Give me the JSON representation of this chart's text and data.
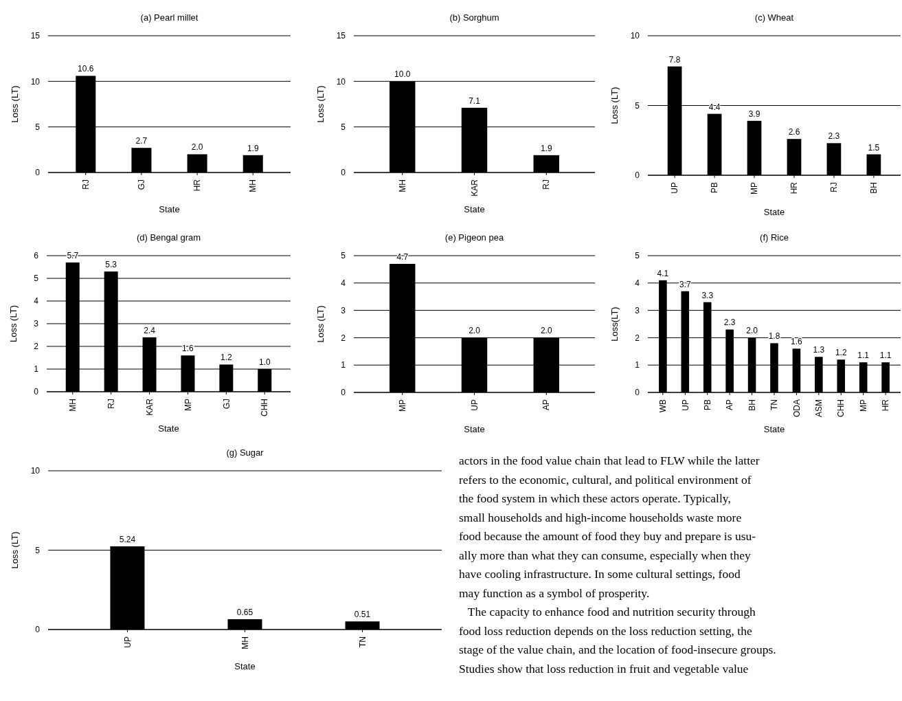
{
  "chart_data": [
    {
      "type": "bar",
      "title": "(a) Pearl millet",
      "xlabel": "State",
      "ylabel": "Loss (LT)",
      "categories": [
        "RJ",
        "GJ",
        "HR",
        "MH"
      ],
      "values": [
        10.6,
        2.7,
        2.0,
        1.9
      ],
      "value_labels": [
        "10.6",
        "2.7",
        "2.0",
        "1.9"
      ],
      "color": "#000000",
      "ylim": [
        0,
        15
      ],
      "yticks": [
        0,
        5,
        10,
        15
      ],
      "grid": "y"
    },
    {
      "type": "bar",
      "title": "(b) Sorghum",
      "xlabel": "State",
      "ylabel": "Loss (LT)",
      "categories": [
        "MH",
        "KAR",
        "RJ"
      ],
      "values": [
        10.0,
        7.1,
        1.9
      ],
      "value_labels": [
        "10.0",
        "7.1",
        "1.9"
      ],
      "color": "#000000",
      "ylim": [
        0,
        15
      ],
      "yticks": [
        0,
        5,
        10,
        15
      ],
      "grid": "y"
    },
    {
      "type": "bar",
      "title": "(c) Wheat",
      "xlabel": "State",
      "ylabel": "Loss (LT)",
      "categories": [
        "UP",
        "PB",
        "MP",
        "HR",
        "RJ",
        "BH"
      ],
      "values": [
        7.8,
        4.4,
        3.9,
        2.6,
        2.3,
        1.5
      ],
      "value_labels": [
        "7.8",
        "4.4",
        "3.9",
        "2.6",
        "2.3",
        "1.5"
      ],
      "color": "#000000",
      "ylim": [
        0,
        10
      ],
      "yticks": [
        0,
        5,
        10
      ],
      "grid": "y"
    },
    {
      "type": "bar",
      "title": "(d) Bengal gram",
      "xlabel": "State",
      "ylabel": "Loss (LT)",
      "categories": [
        "MH",
        "RJ",
        "KAR",
        "MP",
        "GJ",
        "CHH"
      ],
      "values": [
        5.7,
        5.3,
        2.4,
        1.6,
        1.2,
        1.0
      ],
      "value_labels": [
        "5.7",
        "5.3",
        "2.4",
        "1.6",
        "1.2",
        "1.0"
      ],
      "color": "#000000",
      "ylim": [
        0,
        6
      ],
      "yticks": [
        0,
        1,
        2,
        3,
        4,
        5,
        6
      ],
      "grid": "y"
    },
    {
      "type": "bar",
      "title": "(e) Pigeon pea",
      "xlabel": "State",
      "ylabel": "Loss (LT)",
      "categories": [
        "MP",
        "UP",
        "AP"
      ],
      "values": [
        4.7,
        2.0,
        2.0
      ],
      "value_labels": [
        "4.7",
        "2.0",
        "2.0"
      ],
      "color": "#000000",
      "ylim": [
        0,
        5
      ],
      "yticks": [
        0,
        1,
        2,
        3,
        4,
        5
      ],
      "grid": "y"
    },
    {
      "type": "bar",
      "title": "(f) Rice",
      "xlabel": "State",
      "ylabel": "Loss(LT)",
      "categories": [
        "WB",
        "UP",
        "PB",
        "AP",
        "BH",
        "TN",
        "ODA",
        "ASM",
        "CHH",
        "MP",
        "HR"
      ],
      "values": [
        4.1,
        3.7,
        3.3,
        2.3,
        2.0,
        1.8,
        1.6,
        1.3,
        1.2,
        1.1,
        1.1
      ],
      "value_labels": [
        "4.1",
        "3.7",
        "3.3",
        "2.3",
        "2.0",
        "1.8",
        "1.6",
        "1.3",
        "1.2",
        "1.1",
        "1.1"
      ],
      "color": "#000000",
      "ylim": [
        0,
        5
      ],
      "yticks": [
        0,
        1,
        2,
        3,
        4,
        5
      ],
      "grid": "y"
    },
    {
      "type": "bar",
      "title": "(g)  Sugar",
      "xlabel": "State",
      "ylabel": "Loss (LT)",
      "categories": [
        "UP",
        "MH",
        "TN"
      ],
      "values": [
        5.24,
        0.65,
        0.51
      ],
      "value_labels": [
        "5.24",
        "0.65",
        "0.51"
      ],
      "color": "#000000",
      "ylim": [
        0,
        10
      ],
      "yticks": [
        0,
        5,
        10
      ],
      "grid": "y"
    },
    {
      "type": "other",
      "annotations": [
        "actors in the food value chain that lead to FLW while the latter",
        "refers to the economic, cultural, and political environment of",
        "the food system in which these actors operate. Typically,",
        "small households and high-income households waste more",
        "food because the amount of food they buy and prepare is usu-",
        "ally more than what they can consume, especially when they",
        "have cooling infrastructure. In some cultural settings, food",
        "may function as a symbol of prosperity.",
        "   The capacity to enhance food and nutrition security through",
        "food loss reduction depends on the loss reduction setting, the",
        "stage of the value chain, and the location of food-insecure groups.",
        "Studies show that loss reduction in fruit and vegetable value"
      ]
    }
  ]
}
